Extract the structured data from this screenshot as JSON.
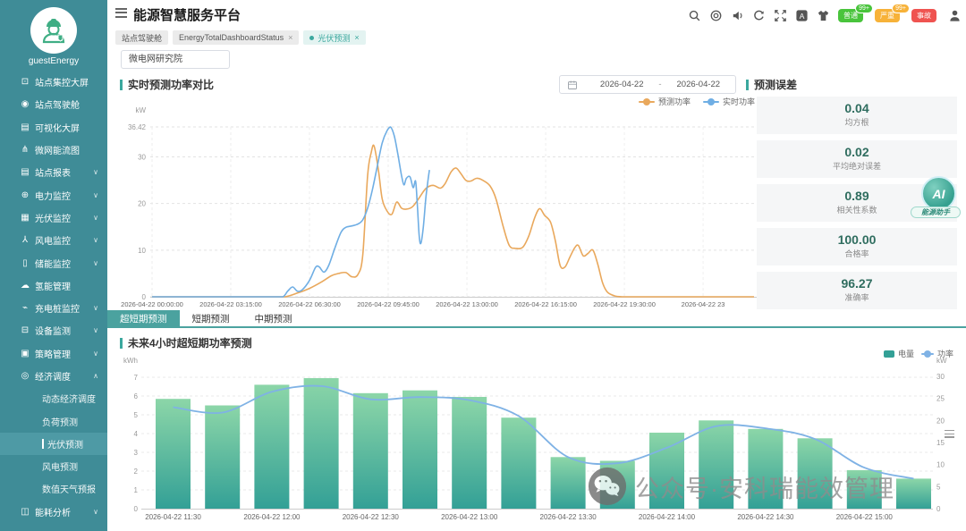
{
  "header": {
    "title": "能源智慧服务平台",
    "tools": [
      "search",
      "aim",
      "speaker",
      "refresh",
      "fullscreen",
      "translate",
      "shirt"
    ],
    "alarm_badges": [
      {
        "label": "普通",
        "count": "99+",
        "color": "#49c43c"
      },
      {
        "label": "严重",
        "count": "99+",
        "color": "#f7b239"
      },
      {
        "label": "事故",
        "count": "",
        "color": "#ef5350"
      }
    ]
  },
  "sidebar": {
    "username": "guestEnergy",
    "items": [
      {
        "id": "site-control-screen",
        "icon": "monitor",
        "label": "站点集控大屏"
      },
      {
        "id": "site-cockpit",
        "icon": "dashboard",
        "label": "站点驾驶舱"
      },
      {
        "id": "visual-screen",
        "icon": "screen",
        "label": "可视化大屏"
      },
      {
        "id": "microgrid-energy-flow",
        "icon": "flow",
        "label": "微网能流图"
      },
      {
        "id": "site-report",
        "icon": "report",
        "label": "站点报表",
        "chevron": "down"
      },
      {
        "id": "power-monitor",
        "icon": "power",
        "label": "电力监控",
        "chevron": "down"
      },
      {
        "id": "pv-monitor",
        "icon": "pv",
        "label": "光伏监控",
        "chevron": "down"
      },
      {
        "id": "wind-monitor",
        "icon": "wind",
        "label": "风电监控",
        "chevron": "down"
      },
      {
        "id": "storage-monitor",
        "icon": "storage",
        "label": "储能监控",
        "chevron": "down"
      },
      {
        "id": "hydrogen-mgmt",
        "icon": "hydrogen",
        "label": "氢能管理"
      },
      {
        "id": "charger-monitor",
        "icon": "charger",
        "label": "充电桩监控",
        "chevron": "down"
      },
      {
        "id": "device-monitor",
        "icon": "device",
        "label": "设备监测",
        "chevron": "down"
      },
      {
        "id": "strategy-mgmt",
        "icon": "strategy",
        "label": "策略管理",
        "chevron": "down"
      },
      {
        "id": "economic-dispatch",
        "icon": "economic",
        "label": "经济调度",
        "chevron": "up",
        "children": [
          {
            "id": "dynamic-economic-dispatch",
            "label": "动态经济调度"
          },
          {
            "id": "load-forecast",
            "label": "负荷预测"
          },
          {
            "id": "pv-forecast",
            "label": "光伏预测",
            "active": true
          },
          {
            "id": "wind-forecast",
            "label": "风电预测"
          },
          {
            "id": "numeric-weather-forecast",
            "label": "数值天气预报"
          }
        ]
      },
      {
        "id": "energy-analysis",
        "icon": "energy",
        "label": "能耗分析",
        "chevron": "down"
      }
    ]
  },
  "tabbar": [
    {
      "label": "站点驾驶舱",
      "closable": false,
      "active": false
    },
    {
      "label": "EnergyTotalDashboardStatus",
      "closable": true,
      "active": false
    },
    {
      "label": "光伏预测",
      "closable": true,
      "active": true
    }
  ],
  "filters": {
    "station": "微电网研究院",
    "date_start": "2026-04-22",
    "date_sep": "-",
    "date_end": "2026-04-22"
  },
  "compare": {
    "title": "实时预测功率对比"
  },
  "errors": {
    "title": "预测误差",
    "cards": [
      {
        "value": "0.04",
        "label": "均方根"
      },
      {
        "value": "0.02",
        "label": "平均绝对误差"
      },
      {
        "value": "0.89",
        "label": "相关性系数"
      },
      {
        "value": "100.00",
        "label": "合格率"
      },
      {
        "value": "96.27",
        "label": "准确率"
      }
    ]
  },
  "ai_badge": {
    "text": "AI",
    "label": "能源助手"
  },
  "forecast_tabs": [
    {
      "label": "超短期预测",
      "active": true
    },
    {
      "label": "短期预测",
      "active": false
    },
    {
      "label": "中期预测",
      "active": false
    }
  ],
  "forecast": {
    "title": "未来4小时超短期功率预测"
  },
  "watermark": {
    "text": "公众号·安科瑞能效管理"
  },
  "chart_data": [
    {
      "type": "line",
      "title": "实时预测功率对比",
      "ylabel": "kW",
      "ylim": [
        0,
        36.42
      ],
      "yticks": [
        0,
        10,
        20,
        30,
        36.42
      ],
      "xticks": [
        "2026-04-22 00:00:00",
        "2026-04-22 03:15:00",
        "2026-04-22 06:30:00",
        "2026-04-22 09:45:00",
        "2026-04-22 13:00:00",
        "2026-04-22 16:15:00",
        "2026-04-22 19:30:00",
        "2026-04-22 23"
      ],
      "x_hours_range": [
        0,
        23.75
      ],
      "grid": true,
      "legend_position": "top-right",
      "series": [
        {
          "name": "预测功率",
          "color": "#E9A85C",
          "points": [
            [
              0,
              0
            ],
            [
              1,
              0
            ],
            [
              2,
              0
            ],
            [
              3,
              0
            ],
            [
              4,
              0
            ],
            [
              5,
              0
            ],
            [
              5.5,
              0
            ],
            [
              6,
              0.8
            ],
            [
              6.5,
              1.8
            ],
            [
              7,
              3.2
            ],
            [
              7.4,
              4.5
            ],
            [
              7.7,
              5
            ],
            [
              8,
              5.2
            ],
            [
              8.25,
              4.3
            ],
            [
              8.5,
              4.8
            ],
            [
              8.7,
              9
            ],
            [
              8.9,
              26
            ],
            [
              9.05,
              31
            ],
            [
              9.17,
              32.3
            ],
            [
              9.35,
              27
            ],
            [
              9.5,
              21
            ],
            [
              9.7,
              18.4
            ],
            [
              9.9,
              17.7
            ],
            [
              10.1,
              20.3
            ],
            [
              10.3,
              19
            ],
            [
              10.5,
              18.8
            ],
            [
              10.75,
              19.3
            ],
            [
              11,
              21
            ],
            [
              11.3,
              23.2
            ],
            [
              11.6,
              23.9
            ],
            [
              11.9,
              23.3
            ],
            [
              12.1,
              24.3
            ],
            [
              12.35,
              26.8
            ],
            [
              12.55,
              27.6
            ],
            [
              12.75,
              26.4
            ],
            [
              12.95,
              25
            ],
            [
              13.15,
              24.8
            ],
            [
              13.4,
              25.4
            ],
            [
              13.65,
              25
            ],
            [
              13.95,
              23.8
            ],
            [
              14.2,
              21
            ],
            [
              14.5,
              15
            ],
            [
              14.75,
              11
            ],
            [
              15,
              10.4
            ],
            [
              15.3,
              10.6
            ],
            [
              15.55,
              13
            ],
            [
              15.8,
              17
            ],
            [
              16,
              18.9
            ],
            [
              16.2,
              17.5
            ],
            [
              16.45,
              16
            ],
            [
              16.65,
              12
            ],
            [
              16.85,
              6.7
            ],
            [
              17.05,
              6.4
            ],
            [
              17.25,
              8.5
            ],
            [
              17.45,
              10.5
            ],
            [
              17.6,
              11
            ],
            [
              17.8,
              8.8
            ],
            [
              18,
              9.3
            ],
            [
              18.2,
              10
            ],
            [
              18.4,
              7
            ],
            [
              18.6,
              3
            ],
            [
              18.8,
              1
            ],
            [
              19.1,
              0.2
            ],
            [
              19.4,
              0
            ],
            [
              20,
              0
            ],
            [
              21,
              0
            ],
            [
              22,
              0
            ],
            [
              23,
              0
            ],
            [
              23.75,
              0
            ]
          ]
        },
        {
          "name": "实时功率",
          "color": "#6FAEE4",
          "points": [
            [
              0,
              0
            ],
            [
              1,
              0
            ],
            [
              2,
              0
            ],
            [
              3,
              0
            ],
            [
              4,
              0
            ],
            [
              5,
              0
            ],
            [
              5.4,
              0
            ],
            [
              5.6,
              1.2
            ],
            [
              5.8,
              2.1
            ],
            [
              6,
              1.2
            ],
            [
              6.2,
              1.5
            ],
            [
              6.5,
              3.5
            ],
            [
              6.75,
              6.3
            ],
            [
              6.9,
              6.4
            ],
            [
              7.1,
              5.3
            ],
            [
              7.3,
              6.8
            ],
            [
              7.55,
              10.5
            ],
            [
              7.8,
              13.8
            ],
            [
              8,
              14.9
            ],
            [
              8.25,
              15.2
            ],
            [
              8.5,
              15.6
            ],
            [
              8.7,
              16.5
            ],
            [
              8.9,
              19
            ],
            [
              9.1,
              23
            ],
            [
              9.3,
              28
            ],
            [
              9.5,
              33
            ],
            [
              9.7,
              35.6
            ],
            [
              9.85,
              36.4
            ],
            [
              10,
              34.5
            ],
            [
              10.15,
              30.5
            ],
            [
              10.3,
              26
            ],
            [
              10.4,
              24
            ],
            [
              10.5,
              25.4
            ],
            [
              10.65,
              25.7
            ],
            [
              10.78,
              23.4
            ],
            [
              10.88,
              24.8
            ],
            [
              10.95,
              20
            ],
            [
              11.03,
              13
            ],
            [
              11.1,
              11.5
            ],
            [
              11.2,
              15
            ],
            [
              11.3,
              21
            ],
            [
              11.38,
              24.5
            ],
            [
              11.45,
              27.2
            ]
          ]
        }
      ]
    },
    {
      "type": "bar",
      "title": "未来4小时超短期功率预测",
      "ylabel_left": "kWh",
      "ylabel_right": "kW",
      "ylim_left": [
        0,
        7
      ],
      "ylim_right": [
        0,
        30
      ],
      "yticks_left": [
        0,
        1,
        2,
        3,
        4,
        5,
        6,
        7
      ],
      "yticks_right": [
        0,
        5,
        10,
        15,
        20,
        25,
        30
      ],
      "categories": [
        "2026-04-22 11:30",
        "2026-04-22 11:45",
        "2026-04-22 12:00",
        "2026-04-22 12:15",
        "2026-04-22 12:30",
        "2026-04-22 12:45",
        "2026-04-22 13:00",
        "2026-04-22 13:15",
        "2026-04-22 13:30",
        "2026-04-22 13:45",
        "2026-04-22 14:00",
        "2026-04-22 14:15",
        "2026-04-22 14:30",
        "2026-04-22 14:45",
        "2026-04-22 15:00",
        "2026-04-22 15:15"
      ],
      "xtick_every": 2,
      "series": [
        {
          "name": "电量",
          "type": "bar",
          "axis": "left",
          "color_top": "#8CD6A8",
          "color_bottom": "#33A096",
          "values": [
            5.85,
            5.5,
            6.6,
            6.95,
            6.15,
            6.3,
            5.95,
            4.85,
            2.75,
            2.55,
            4.05,
            4.7,
            4.25,
            3.75,
            2.05,
            1.6
          ]
        },
        {
          "name": "功率",
          "type": "line",
          "axis": "right",
          "color": "#7FB2E5",
          "values": [
            23,
            21.8,
            26.5,
            27.8,
            24.8,
            25.3,
            24.6,
            21,
            11.7,
            10.3,
            13.8,
            18.7,
            18.2,
            15.8,
            9.3,
            6.8
          ]
        }
      ]
    }
  ]
}
